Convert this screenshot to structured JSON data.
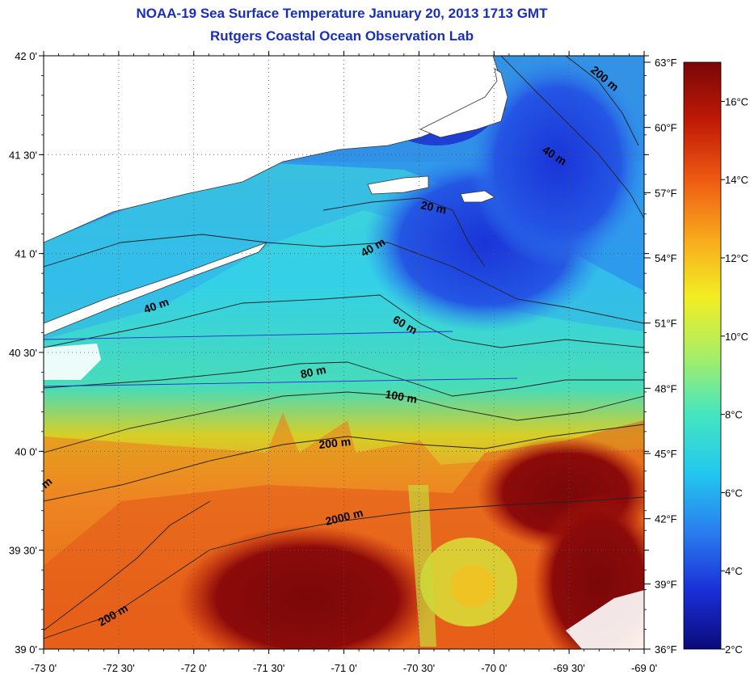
{
  "header": {
    "title": "NOAA-19 Sea Surface Temperature January 20, 2013 1713 GMT",
    "subtitle": "Rutgers Coastal Ocean Observation Lab"
  },
  "map": {
    "lon_range": [
      -73.0,
      -69.0
    ],
    "lat_range": [
      39.0,
      42.0
    ],
    "lon_ticks": [
      "-73 0'",
      "-72 30'",
      "-72 0'",
      "-71 30'",
      "-71 0'",
      "-70 30'",
      "-70 0'",
      "-69 30'",
      "-69 0'"
    ],
    "lat_ticks": [
      "42 0'",
      "41 30'",
      "41 0'",
      "40 30'",
      "40 0'",
      "39 30'",
      "39 0'"
    ],
    "grid": true,
    "isobath_labels": [
      "20 m",
      "40 m",
      "40 m",
      "40 m",
      "60 m",
      "80 m",
      "100 m",
      "200 m",
      "200 m",
      "200 m",
      "2000 m",
      "m"
    ],
    "colors": {
      "land": "#ffffff",
      "cloud": "#ffffff",
      "title": "#1a2fb8",
      "isobath": "#222222"
    }
  },
  "colorbar": {
    "range_celsius": [
      2,
      17
    ],
    "fahrenheit_labels": [
      "63°F",
      "60°F",
      "57°F",
      "54°F",
      "51°F",
      "48°F",
      "45°F",
      "42°F",
      "39°F",
      "36°F"
    ],
    "celsius_labels": [
      "16°C",
      "14°C",
      "12°C",
      "10°C",
      "8°C",
      "6°C",
      "4°C",
      "2°C"
    ],
    "colors": [
      "#0a0a7a",
      "#1a2fd8",
      "#2a7ef0",
      "#22c8ee",
      "#44e6c0",
      "#a8ee66",
      "#f2ee22",
      "#f8a81c",
      "#ee5a12",
      "#c01a06",
      "#7a0606"
    ]
  }
}
